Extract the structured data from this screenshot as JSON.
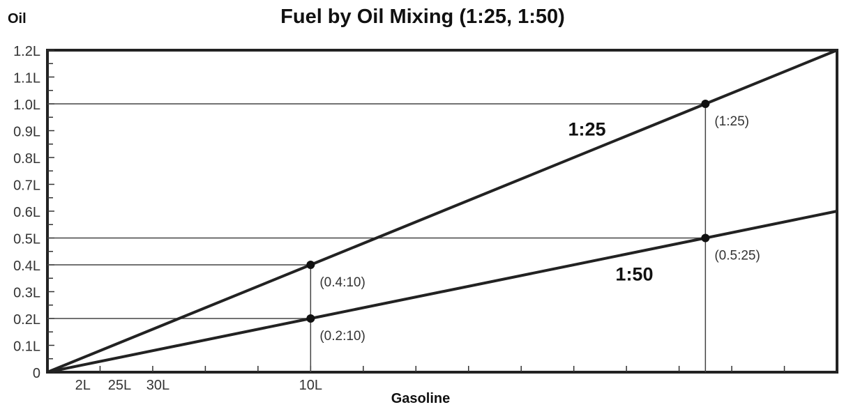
{
  "chart_data": {
    "type": "line",
    "title": "Fuel by Oil Mixing (1:25, 1:50)",
    "xlabel": "Gasoline",
    "ylabel": "Oil",
    "x_tick_labels": [
      "2L",
      "25L",
      "30L",
      "10L"
    ],
    "y_tick_labels": [
      "0",
      "0.1L",
      "0.2L",
      "0.3L",
      "0.4L",
      "0.5L",
      "0.6L",
      "0.7L",
      "0.8L",
      "0.9L",
      "1.0L",
      "1.1L",
      "1.2L"
    ],
    "ylim": [
      0,
      1.2
    ],
    "xlim": [
      0,
      30
    ],
    "grid": false,
    "series": [
      {
        "name": "1:25",
        "x": [
          0,
          10,
          25,
          30
        ],
        "y": [
          0,
          0.4,
          1.0,
          1.2
        ]
      },
      {
        "name": "1:50",
        "x": [
          0,
          10,
          25,
          30
        ],
        "y": [
          0,
          0.2,
          0.5,
          0.6
        ]
      }
    ],
    "points": [
      {
        "x": 10,
        "y": 0.4,
        "label": "(0.4:10)"
      },
      {
        "x": 10,
        "y": 0.2,
        "label": "(0.2:10)"
      },
      {
        "x": 25,
        "y": 1.0,
        "label": "(1:25)"
      },
      {
        "x": 25,
        "y": 0.5,
        "label": "(0.5:25)"
      }
    ]
  }
}
